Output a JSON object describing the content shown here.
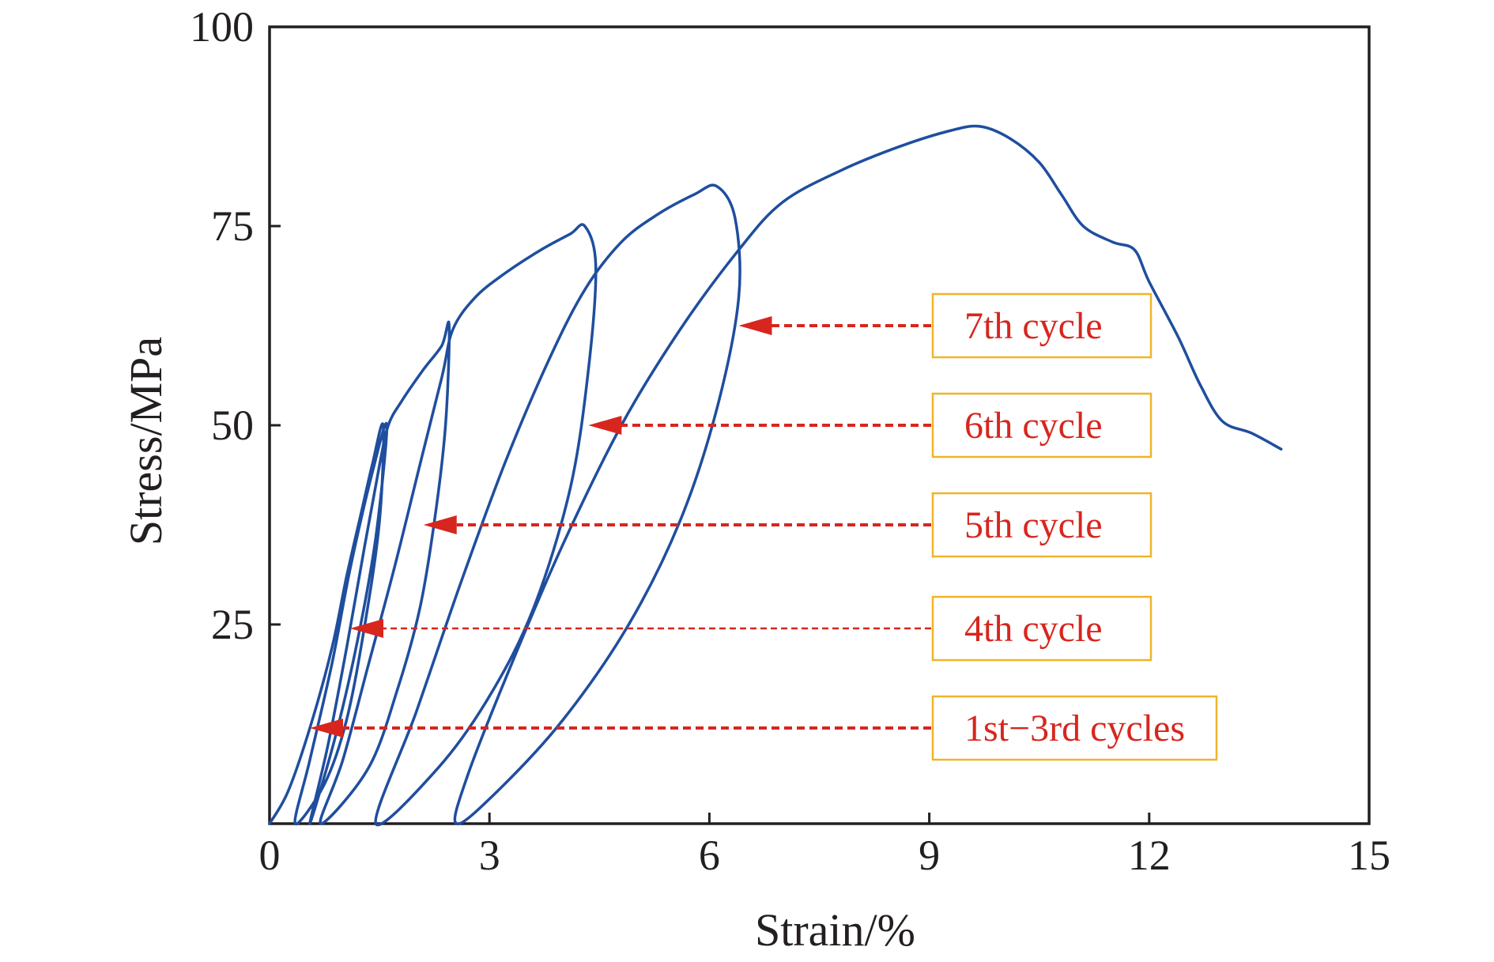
{
  "chart_data": {
    "type": "line",
    "title": "",
    "xlabel": "Strain/%",
    "ylabel": "Stress/MPa",
    "xlim": [
      0,
      15
    ],
    "ylim": [
      0,
      100
    ],
    "x_ticks": [
      0,
      3,
      6,
      9,
      12,
      15
    ],
    "y_ticks": [
      25,
      50,
      75,
      100
    ],
    "x_tick_labels": [
      "0",
      "3",
      "6",
      "9",
      "12",
      "15"
    ],
    "y_tick_labels": [
      "25",
      "50",
      "75",
      "100"
    ],
    "grid": false,
    "line_color": "#1f4e9e",
    "annotation_color": "#d7261e",
    "annotation_box_border": "#f0b429",
    "series": [
      {
        "values": [
          [
            0.0,
            0.0
          ],
          [
            0.25,
            4.0
          ],
          [
            0.55,
            12.0
          ],
          [
            0.85,
            22.0
          ],
          [
            1.05,
            31.0
          ],
          [
            1.25,
            39.0
          ],
          [
            1.4,
            45.0
          ],
          [
            1.55,
            50.0
          ],
          [
            1.5,
            38.0
          ],
          [
            1.3,
            25.0
          ],
          [
            1.05,
            13.0
          ],
          [
            0.75,
            5.0
          ],
          [
            0.35,
            0.0
          ],
          [
            0.55,
            8.0
          ],
          [
            0.85,
            20.0
          ],
          [
            1.1,
            32.0
          ],
          [
            1.4,
            44.0
          ],
          [
            1.6,
            50.0
          ],
          [
            1.45,
            36.0
          ],
          [
            1.2,
            23.0
          ],
          [
            0.9,
            11.0
          ],
          [
            0.55,
            0.0
          ],
          [
            0.8,
            10.0
          ],
          [
            1.05,
            22.0
          ],
          [
            1.3,
            35.0
          ],
          [
            1.5,
            45.0
          ],
          [
            1.62,
            50.0
          ],
          [
            1.8,
            53.0
          ],
          [
            2.1,
            57.0
          ],
          [
            2.35,
            60.0
          ],
          [
            2.45,
            62.5
          ],
          [
            2.4,
            50.0
          ],
          [
            2.25,
            38.0
          ],
          [
            2.05,
            27.0
          ],
          [
            1.75,
            17.0
          ],
          [
            1.35,
            7.0
          ],
          [
            0.7,
            0.0
          ],
          [
            1.0,
            8.0
          ],
          [
            1.35,
            20.0
          ],
          [
            1.7,
            32.0
          ],
          [
            2.05,
            45.0
          ],
          [
            2.35,
            56.0
          ],
          [
            2.5,
            62.0
          ],
          [
            2.8,
            66.0
          ],
          [
            3.2,
            69.0
          ],
          [
            3.7,
            72.0
          ],
          [
            4.1,
            74.0
          ],
          [
            4.3,
            75.0
          ],
          [
            4.45,
            70.0
          ],
          [
            4.35,
            57.0
          ],
          [
            4.1,
            42.0
          ],
          [
            3.6,
            27.0
          ],
          [
            3.0,
            16.0
          ],
          [
            2.3,
            7.0
          ],
          [
            1.45,
            0.0
          ],
          [
            2.0,
            14.0
          ],
          [
            2.6,
            30.0
          ],
          [
            3.2,
            45.0
          ],
          [
            3.8,
            58.0
          ],
          [
            4.3,
            67.0
          ],
          [
            4.8,
            73.0
          ],
          [
            5.3,
            76.5
          ],
          [
            5.8,
            79.0
          ],
          [
            6.1,
            80.0
          ],
          [
            6.35,
            76.0
          ],
          [
            6.4,
            66.0
          ],
          [
            6.1,
            52.0
          ],
          [
            5.6,
            38.0
          ],
          [
            4.9,
            25.0
          ],
          [
            4.0,
            13.0
          ],
          [
            3.1,
            4.0
          ],
          [
            2.55,
            0.0
          ],
          [
            2.7,
            6.0
          ],
          [
            3.3,
            20.0
          ],
          [
            4.0,
            35.0
          ],
          [
            4.8,
            50.0
          ],
          [
            5.6,
            62.0
          ],
          [
            6.4,
            72.0
          ],
          [
            7.0,
            78.0
          ],
          [
            7.8,
            82.0
          ],
          [
            8.6,
            85.0
          ],
          [
            9.3,
            87.0
          ],
          [
            9.7,
            87.5
          ],
          [
            10.1,
            86.0
          ],
          [
            10.5,
            83.0
          ],
          [
            10.8,
            79.0
          ],
          [
            11.1,
            75.0
          ],
          [
            11.5,
            73.0
          ],
          [
            11.8,
            72.0
          ],
          [
            12.0,
            68.0
          ],
          [
            12.4,
            61.0
          ],
          [
            12.7,
            55.0
          ],
          [
            13.0,
            50.5
          ],
          [
            13.4,
            49.0
          ],
          [
            13.8,
            47.0
          ]
        ]
      }
    ],
    "annotations": [
      {
        "label": "7th cycle",
        "target": [
          6.4,
          62.5
        ],
        "label_y": 62.5,
        "dash_style": "heavy"
      },
      {
        "label": "6th cycle",
        "target": [
          4.35,
          50.0
        ],
        "label_y": 50.0,
        "dash_style": "heavy"
      },
      {
        "label": "5th cycle",
        "target": [
          2.1,
          37.5
        ],
        "label_y": 37.5,
        "dash_style": "heavy"
      },
      {
        "label": "4th cycle",
        "target": [
          1.1,
          24.5
        ],
        "label_y": 24.5,
        "dash_style": "thin"
      },
      {
        "label": "1st−3rd cycles",
        "target": [
          0.55,
          12.0
        ],
        "label_y": 12.0,
        "dash_style": "heavy"
      }
    ]
  }
}
